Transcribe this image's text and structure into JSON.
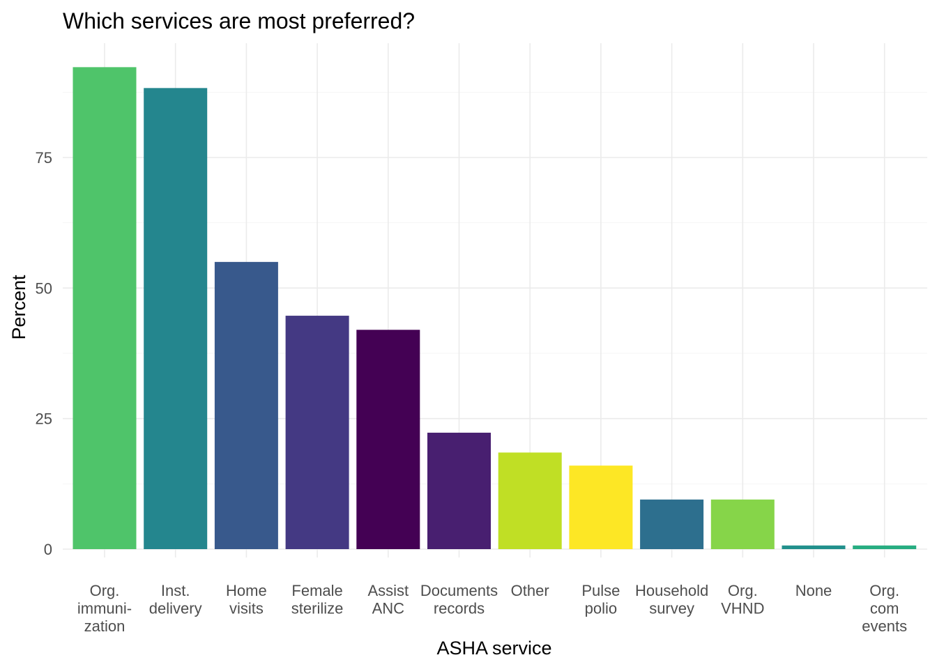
{
  "chart_data": {
    "type": "bar",
    "title": "Which services are most preferred?",
    "xlabel": "ASHA service",
    "ylabel": "Percent",
    "ylim": [
      0,
      97
    ],
    "yticks": [
      0,
      25,
      50,
      75
    ],
    "grid": true,
    "legend": "none",
    "categories": [
      [
        "Org.",
        "immuni-",
        "zation"
      ],
      [
        "Inst.",
        "delivery"
      ],
      [
        "Home",
        "visits"
      ],
      [
        "Female",
        "sterilize"
      ],
      [
        "Assist",
        "ANC"
      ],
      [
        "Documents",
        "records"
      ],
      [
        "Other"
      ],
      [
        "Pulse",
        "polio"
      ],
      [
        "Household",
        "survey"
      ],
      [
        "Org.",
        "VHND"
      ],
      [
        "None"
      ],
      [
        "Org.",
        "com",
        "events"
      ]
    ],
    "values": [
      92.3,
      88.3,
      55.0,
      44.7,
      42.0,
      22.3,
      18.5,
      16.0,
      9.5,
      9.5,
      0.7,
      0.7
    ],
    "colors": [
      "#4fc46a",
      "#24868e",
      "#38598c",
      "#443983",
      "#440154",
      "#481f70",
      "#c0df25",
      "#fde725",
      "#2d6f8e",
      "#86d549",
      "#21908c",
      "#27ad81"
    ]
  }
}
